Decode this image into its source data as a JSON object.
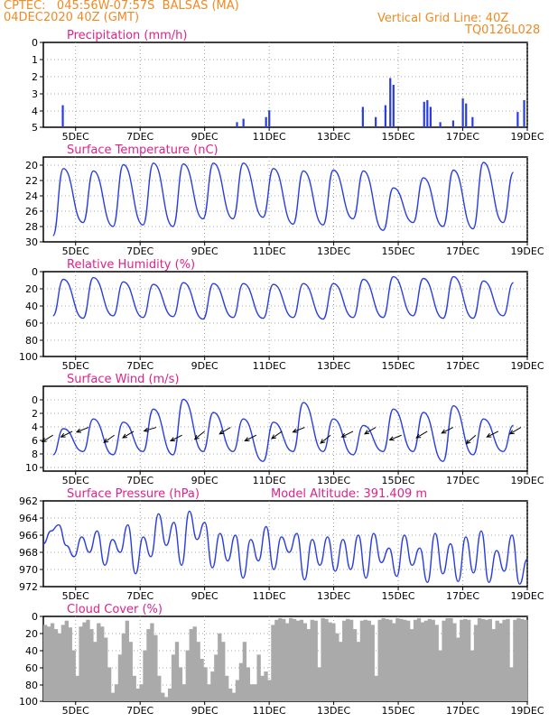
{
  "header": {
    "line1_left": "CPTEC:   045:56W-07:57S  BALSAS (MA)",
    "line2_left": "04DEC2020 40Z (GMT)",
    "line1_right": "Vertical Grid Line: 40Z",
    "line2_right": "TQ0126L028"
  },
  "colors": {
    "header": "#f08a24",
    "title": "#e0218a",
    "series": "#2a3ee0",
    "cloud": "#aaaaaa"
  },
  "x_ticks": [
    "5DEC",
    "7DEC",
    "9DEC",
    "11DEC",
    "13DEC",
    "15DEC",
    "17DEC",
    "19DEC"
  ],
  "model_altitude": "Model Altitude: 391.409 m",
  "chart_data": [
    {
      "type": "bar",
      "title": "Precipitation (mm/h)",
      "ylim": [
        0,
        5
      ],
      "yticks": [
        "0",
        "1",
        "2",
        "3",
        "4",
        "5"
      ],
      "events": [
        {
          "day": 4.6,
          "value": 1.3
        },
        {
          "day": 10.0,
          "value": 0.3
        },
        {
          "day": 10.2,
          "value": 0.5
        },
        {
          "day": 10.9,
          "value": 0.6
        },
        {
          "day": 11.0,
          "value": 1.0
        },
        {
          "day": 13.9,
          "value": 1.2
        },
        {
          "day": 14.3,
          "value": 0.6
        },
        {
          "day": 14.6,
          "value": 1.3
        },
        {
          "day": 14.75,
          "value": 2.9
        },
        {
          "day": 14.85,
          "value": 2.5
        },
        {
          "day": 15.8,
          "value": 1.5
        },
        {
          "day": 15.9,
          "value": 1.6
        },
        {
          "day": 16.0,
          "value": 1.2
        },
        {
          "day": 16.3,
          "value": 0.3
        },
        {
          "day": 16.7,
          "value": 0.4
        },
        {
          "day": 17.0,
          "value": 1.7
        },
        {
          "day": 17.1,
          "value": 1.4
        },
        {
          "day": 17.3,
          "value": 0.6
        },
        {
          "day": 18.7,
          "value": 0.9
        },
        {
          "day": 18.9,
          "value": 1.6
        }
      ]
    },
    {
      "type": "line",
      "title": "Surface Temperature (nC)",
      "ylim": [
        20,
        31
      ],
      "yticks": [
        "20",
        "22",
        "24",
        "26",
        "28",
        "30"
      ],
      "highs": [
        29.5,
        29.2,
        30.0,
        30.2,
        30.1,
        30.2,
        30.2,
        29.5,
        29.2,
        29.3,
        29.2,
        27.0,
        28.3,
        29.3,
        30.3,
        29.0
      ],
      "lows": [
        20.8,
        22.5,
        22.0,
        22.2,
        22.0,
        23.0,
        23.0,
        23.2,
        22.3,
        22.2,
        23.0,
        21.5,
        22.5,
        22.0,
        21.7,
        22.5
      ]
    },
    {
      "type": "line",
      "title": "Relative Humidity (%)",
      "ylim": [
        0,
        100
      ],
      "yticks": [
        "0",
        "20",
        "40",
        "60",
        "80",
        "100"
      ],
      "highs": [
        91,
        93,
        88,
        85,
        87,
        86,
        86,
        85,
        86,
        86,
        91,
        94,
        92,
        94,
        89,
        87
      ],
      "lows": [
        48,
        45,
        48,
        46,
        47,
        44,
        46,
        45,
        46,
        44,
        46,
        46,
        48,
        45,
        45,
        48
      ]
    },
    {
      "type": "line",
      "title": "Surface Wind (m/s)",
      "ylim": [
        -1,
        12
      ],
      "yticks": [
        "0",
        "2",
        "4",
        "6",
        "8",
        "10"
      ],
      "highs": [
        5.5,
        7.0,
        6.5,
        8.5,
        10.0,
        8.0,
        7.0,
        6.5,
        9.5,
        7.0,
        6.0,
        8.5,
        8.0,
        9.0,
        7.0,
        6.0
      ],
      "lows": [
        1.5,
        2.0,
        1.5,
        2.0,
        1.5,
        2.0,
        2.0,
        0.5,
        2.0,
        2.0,
        1.5,
        2.0,
        2.0,
        0.5,
        1.5,
        2.0
      ],
      "arrow_days": [
        4.3,
        4.9,
        5.4,
        6.2,
        6.8,
        7.5,
        8.3,
        9.0,
        9.8,
        10.6,
        11.4,
        12.1,
        12.9,
        13.6,
        14.3,
        15.1,
        15.9,
        16.7,
        17.4,
        18.1,
        18.8
      ],
      "arrow_dirs": [
        [
          -1,
          0.6
        ],
        [
          -1,
          0.5
        ],
        [
          -1,
          0.4
        ],
        [
          -1,
          0.7
        ],
        [
          -1,
          0.6
        ],
        [
          -1,
          0.3
        ],
        [
          -1,
          0.5
        ],
        [
          -1,
          0.8
        ],
        [
          -1,
          0.6
        ],
        [
          -1,
          0.5
        ],
        [
          -1,
          0.7
        ],
        [
          -1,
          0.4
        ],
        [
          -1,
          0.8
        ],
        [
          -1,
          0.5
        ],
        [
          -1,
          0.6
        ],
        [
          -1,
          0.4
        ],
        [
          -1,
          0.6
        ],
        [
          -1,
          0.5
        ],
        [
          -1,
          0.9
        ],
        [
          -1,
          0.5
        ],
        [
          -1,
          0.6
        ]
      ]
    },
    {
      "type": "line",
      "title": "Surface Pressure (hPa)",
      "ylim": [
        962,
        972
      ],
      "yticks": [
        "962",
        "964",
        "966",
        "968",
        "970",
        "972"
      ],
      "series": [
        967.0,
        968.5,
        969.2,
        966.8,
        965.5,
        967.8,
        966.0,
        968.5,
        964.5,
        967.5,
        966.0,
        969.2,
        963.5,
        967.8,
        965.5,
        970.5,
        966.8,
        969.5,
        964.5,
        970.8,
        967.5,
        969.5,
        964.2,
        968.2,
        965.0,
        968.0,
        963.0,
        967.5,
        965.0,
        969.0,
        964.0,
        967.8,
        966.0,
        968.2,
        962.8,
        967.5,
        964.5,
        967.8,
        963.8,
        967.5,
        964.0,
        968.0,
        963.0,
        968.2,
        964.8,
        966.5,
        963.2,
        968.0,
        964.5,
        966.5,
        962.5,
        968.2,
        963.5,
        967.0,
        962.6,
        967.8,
        963.6,
        968.5,
        962.5,
        966.2,
        963.8,
        968.0,
        962.3,
        965.2
      ]
    },
    {
      "type": "area",
      "title": "Cloud Cover (%)",
      "ylim": [
        0,
        100
      ],
      "yticks": [
        "0",
        "20",
        "40",
        "60",
        "80",
        "100"
      ],
      "series": [
        90,
        88,
        92,
        85,
        80,
        90,
        95,
        87,
        60,
        30,
        88,
        93,
        96,
        85,
        70,
        92,
        88,
        75,
        40,
        10,
        20,
        55,
        80,
        95,
        70,
        30,
        15,
        20,
        60,
        85,
        92,
        78,
        30,
        10,
        5,
        15,
        55,
        70,
        40,
        20,
        60,
        85,
        88,
        70,
        50,
        40,
        20,
        35,
        55,
        80,
        70,
        30,
        15,
        10,
        25,
        45,
        70,
        40,
        20,
        20,
        55,
        30,
        35,
        25,
        90,
        96,
        98,
        97,
        92,
        98,
        97,
        95,
        96,
        92,
        85,
        96,
        95,
        40,
        98,
        97,
        93,
        92,
        80,
        70,
        95,
        97,
        96,
        85,
        70,
        95,
        96,
        95,
        90,
        30,
        96,
        98,
        97,
        96,
        92,
        98,
        97,
        96,
        95,
        85,
        96,
        98,
        93,
        95,
        97,
        96,
        90,
        60,
        95,
        98,
        98,
        92,
        75,
        96,
        97,
        96,
        60,
        90,
        98,
        97,
        96,
        97,
        85,
        95,
        92,
        96,
        97,
        40,
        96,
        98,
        97,
        96
      ]
    }
  ]
}
